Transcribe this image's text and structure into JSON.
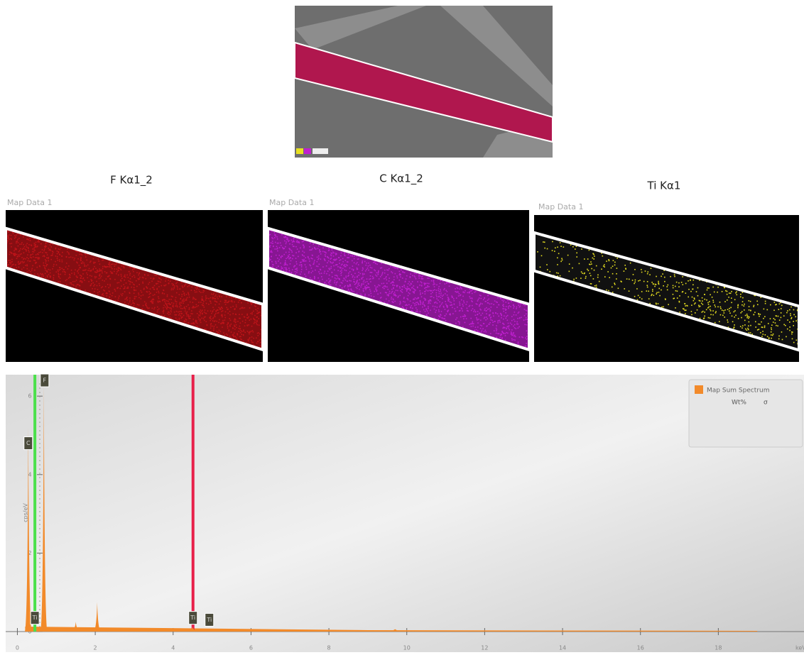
{
  "maps": [
    {
      "title": "F Kα1_2",
      "caption": "Map Data 1",
      "color": "#c0141a"
    },
    {
      "title": "C Kα1_2",
      "caption": "Map Data 1",
      "color": "#c020d0"
    },
    {
      "title": "Ti Kα1",
      "caption": "Map Data 1",
      "color": "#e8e020"
    }
  ],
  "spectrum": {
    "y_label": "cps/eV",
    "x_unit": "keV",
    "xlim": [
      -0.3,
      20.2
    ],
    "ylim": [
      0,
      6.6
    ],
    "xticks": [
      0,
      2,
      4,
      6,
      8,
      10,
      12,
      14,
      16,
      18
    ],
    "yticks": [
      0,
      2,
      4,
      6
    ],
    "legend": {
      "name": "Map Sum Spectrum",
      "columns": [
        "Wt%",
        "σ"
      ]
    },
    "peaks": [
      {
        "x": 0.28,
        "y": 5.2
      },
      {
        "x": 0.68,
        "y": 6.3
      },
      {
        "x": 1.5,
        "y": 0.25
      },
      {
        "x": 2.05,
        "y": 0.75
      },
      {
        "x": 4.5,
        "y": 0.12
      },
      {
        "x": 9.7,
        "y": 0.06
      }
    ],
    "lines": [
      {
        "x": 0.45,
        "color": "#4be04b"
      },
      {
        "x": 4.51,
        "color": "#e8204a"
      }
    ],
    "peak_labels": [
      {
        "x": 0.28,
        "y": 4.8,
        "text": "C"
      },
      {
        "x": 0.7,
        "y": 6.4,
        "text": "F"
      },
      {
        "x": 0.45,
        "y": 0.35,
        "text": "Ti"
      },
      {
        "x": 4.51,
        "y": 0.35,
        "text": "Ti"
      },
      {
        "x": 4.93,
        "y": 0.3,
        "text": "Ti"
      }
    ]
  }
}
